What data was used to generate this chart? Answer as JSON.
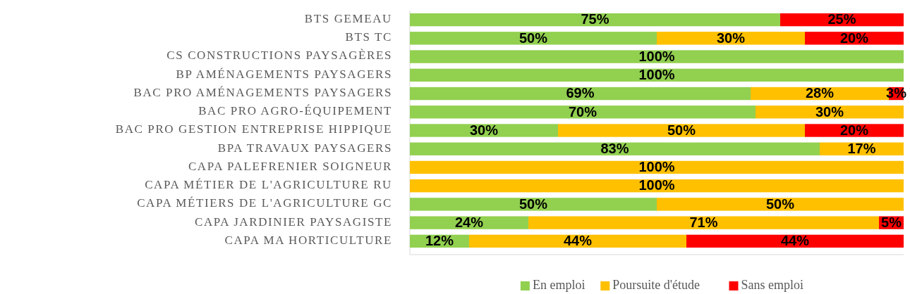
{
  "chart_data": {
    "type": "bar",
    "orientation": "horizontal",
    "stacked": true,
    "legend": "bottom",
    "categories": [
      "BTS GEMEAU",
      "BTS TC",
      "CS CONSTRUCTIONS PAYSAGÈRES",
      "BP AMÉNAGEMENTS PAYSAGERS",
      "BAC PRO AMÉNAGEMENTS PAYSAGERS",
      "BAC PRO AGRO-ÉQUIPEMENT",
      "BAC PRO GESTION ENTREPRISE HIPPIQUE",
      "BPA TRAVAUX PAYSAGERS",
      "CAPA PALEFRENIER SOIGNEUR",
      "CAPA MÉTIER DE L'AGRICULTURE RU",
      "CAPA MÉTIERS DE L'AGRICULTURE GC",
      "CAPA JARDINIER PAYSAGISTE",
      "CAPA MA HORTICULTURE"
    ],
    "series": [
      {
        "name": "En emploi",
        "color": "#92d050",
        "values": [
          75,
          50,
          100,
          100,
          69,
          70,
          30,
          83,
          null,
          null,
          50,
          24,
          12
        ],
        "value_labels": [
          "75%",
          "50%",
          "100%",
          "100%",
          "69%",
          "70%",
          "30%",
          "83%",
          null,
          null,
          "50%",
          "24%",
          "12%"
        ]
      },
      {
        "name": "Poursuite d'étude",
        "color": "#ffc000",
        "values": [
          null,
          30,
          null,
          null,
          28,
          30,
          50,
          17,
          100,
          100,
          50,
          71,
          44
        ],
        "value_labels": [
          null,
          "30%",
          null,
          null,
          "28%",
          "30%",
          "50%",
          "17%",
          "100%",
          "100%",
          "50%",
          "71%",
          "44%"
        ]
      },
      {
        "name": "Sans emploi",
        "color": "#ff0000",
        "values": [
          25,
          20,
          null,
          null,
          3,
          null,
          20,
          null,
          null,
          null,
          null,
          5,
          44
        ],
        "value_labels": [
          "25%",
          "20%",
          null,
          null,
          "3%",
          null,
          "20%",
          null,
          null,
          null,
          null,
          "5%",
          "44%"
        ]
      }
    ]
  }
}
